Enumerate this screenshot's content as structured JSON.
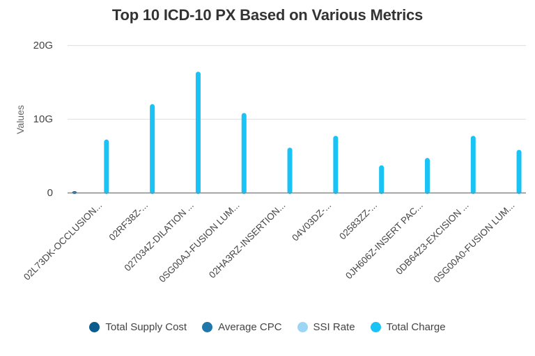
{
  "chart_data": {
    "type": "bar",
    "title": "Top 10 ICD-10 PX Based on Various Metrics",
    "xlabel": "",
    "ylabel": "Values",
    "ylim": [
      0,
      20000000000
    ],
    "yticks": [
      {
        "value": 0,
        "label": "0"
      },
      {
        "value": 10000000000,
        "label": "10G"
      },
      {
        "value": 20000000000,
        "label": "20G"
      }
    ],
    "grid": true,
    "legend_position": "bottom",
    "categories": [
      "02L73DK-OCCLUSION...",
      "02RF38Z-...",
      "027034Z-DILATION ...",
      "0SG00AJ-FUSION LUM...",
      "02HA3RZ-INSERTION...",
      "04V03DZ-...",
      "02583ZZ-...",
      "0JH606Z-INSERT PAC...",
      "0DB64Z3-EXCISION ...",
      "0SG00A0-FUSION LUM..."
    ],
    "series": [
      {
        "name": "Total Supply Cost",
        "color": "#0b5b8f",
        "values": [
          100000000,
          0,
          0,
          0,
          0,
          0,
          0,
          0,
          0,
          0
        ]
      },
      {
        "name": "Average CPC",
        "color": "#1f77aa",
        "values": [
          0,
          0,
          0,
          0,
          0,
          0,
          0,
          0,
          0,
          0
        ]
      },
      {
        "name": "SSI Rate",
        "color": "#9dd6f5",
        "values": [
          0,
          0,
          0,
          0,
          0,
          0,
          0,
          0,
          0,
          0
        ]
      },
      {
        "name": "Total Charge",
        "color": "#1ac3f5",
        "values": [
          7200000000,
          12000000000,
          16400000000,
          10800000000,
          6100000000,
          7700000000,
          3700000000,
          4700000000,
          7700000000,
          5800000000
        ]
      }
    ]
  }
}
